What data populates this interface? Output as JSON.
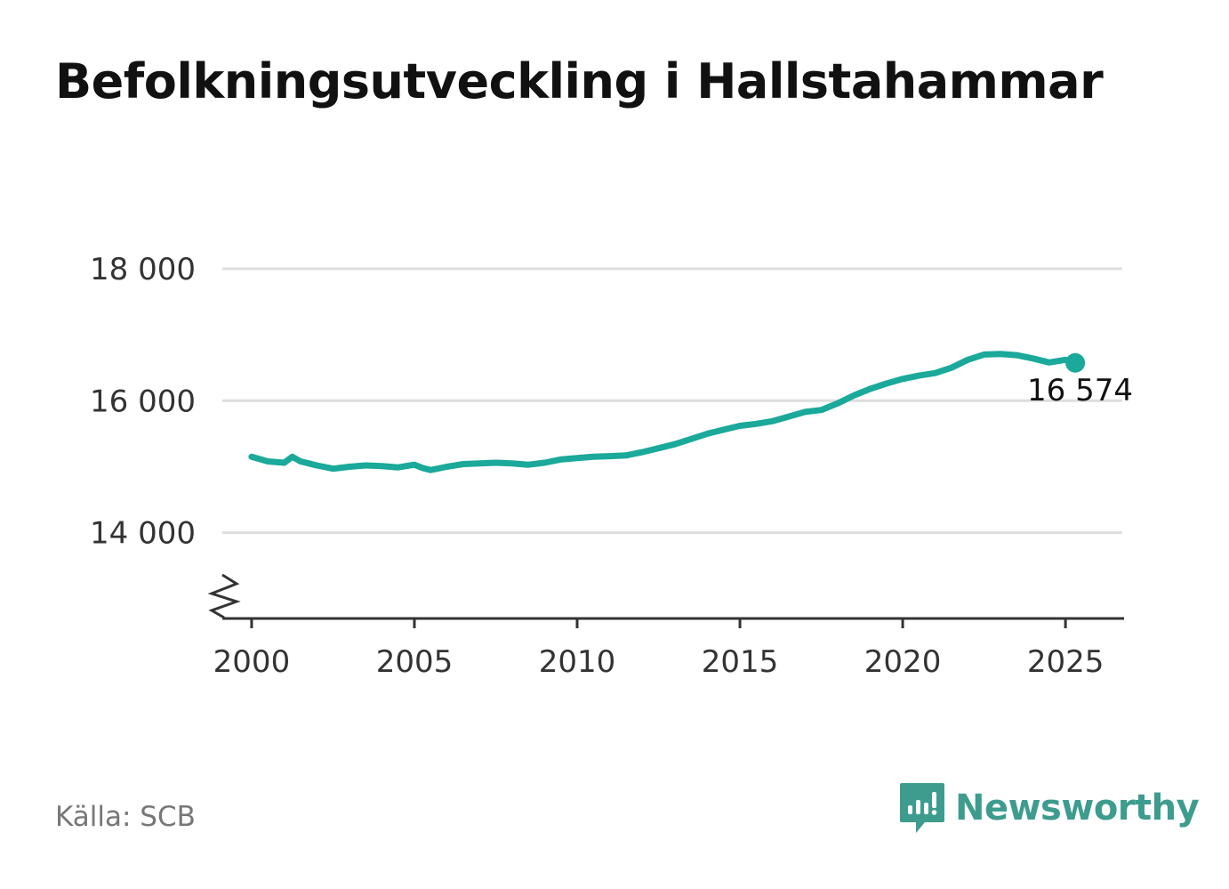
{
  "title": "Befolkningsutveckling i Hallstahammar",
  "source": "Källa: SCB",
  "logo": {
    "name": "Newsworthy",
    "icon": "newsworthy-logo-icon",
    "color": "#3d9c8e"
  },
  "colors": {
    "line": "#1aa99a",
    "grid": "#dddddd",
    "axis": "#333333",
    "text": "#333333"
  },
  "chart_data": {
    "type": "line",
    "title": "Befolkningsutveckling i Hallstahammar",
    "xlabel": "",
    "ylabel": "",
    "xlim": [
      1999.1,
      2026.8
    ],
    "ylim": [
      12700,
      18000
    ],
    "y_axis_break": true,
    "grid": "horizontal",
    "yticks": [
      14000,
      16000,
      18000
    ],
    "ytick_labels": [
      "14 000",
      "16 000",
      "18 000"
    ],
    "xticks": [
      2000,
      2005,
      2010,
      2015,
      2020,
      2025
    ],
    "xtick_labels": [
      "2000",
      "2005",
      "2010",
      "2015",
      "2020",
      "2025"
    ],
    "series": [
      {
        "x": [
          2000.0,
          2000.5,
          2001.0,
          2001.25,
          2001.5,
          2001.75,
          2002.0,
          2002.5,
          2003.0,
          2003.5,
          2004.0,
          2004.5,
          2005.0,
          2005.25,
          2005.5,
          2006.0,
          2006.5,
          2007.0,
          2007.5,
          2008.0,
          2008.5,
          2009.0,
          2009.5,
          2010.0,
          2010.5,
          2011.0,
          2011.5,
          2012.0,
          2012.5,
          2013.0,
          2013.5,
          2014.0,
          2014.5,
          2015.0,
          2015.5,
          2016.0,
          2016.5,
          2017.0,
          2017.5,
          2018.0,
          2018.5,
          2019.0,
          2019.5,
          2020.0,
          2020.5,
          2021.0,
          2021.5,
          2022.0,
          2022.5,
          2023.0,
          2023.5,
          2024.0,
          2024.5,
          2025.0,
          2025.3
        ],
        "y": [
          15150,
          15080,
          15060,
          15150,
          15080,
          15050,
          15020,
          14970,
          15000,
          15020,
          15010,
          14990,
          15030,
          14980,
          14950,
          15000,
          15040,
          15050,
          15060,
          15050,
          15030,
          15060,
          15110,
          15130,
          15150,
          15160,
          15170,
          15220,
          15280,
          15340,
          15420,
          15500,
          15560,
          15620,
          15650,
          15690,
          15760,
          15830,
          15860,
          15960,
          16080,
          16180,
          16260,
          16330,
          16380,
          16420,
          16500,
          16620,
          16700,
          16710,
          16690,
          16640,
          16580,
          16620,
          16574
        ]
      }
    ],
    "last_point": {
      "x": 2025.3,
      "y": 16574,
      "label": "16 574"
    }
  }
}
